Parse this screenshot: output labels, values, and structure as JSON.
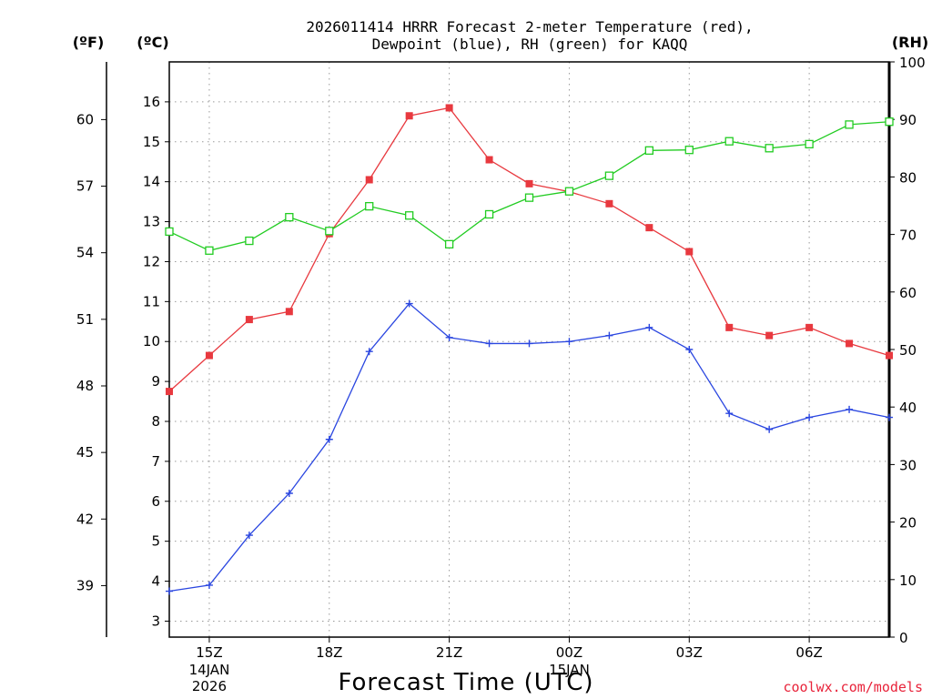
{
  "chart_data": {
    "type": "line",
    "title": "2026011414 HRRR Forecast 2-meter Temperature (red),",
    "subtitle": "Dewpoint (blue), RH (green) for KAQQ",
    "xlabel": "Forecast Time (UTC)",
    "units": {
      "fahrenheit": "(ºF)",
      "celsius": "(ºC)",
      "rh": "(RH)"
    },
    "credit": "coolwx.com/models",
    "x_hours": [
      14,
      15,
      16,
      17,
      18,
      19,
      20,
      21,
      22,
      23,
      24,
      25,
      26,
      27,
      28,
      29,
      30,
      31,
      32
    ],
    "x_range": [
      14,
      32
    ],
    "x_ticks": [
      {
        "hour": 15,
        "label": "15Z",
        "date": [
          "14JAN",
          "2026"
        ]
      },
      {
        "hour": 18,
        "label": "18Z",
        "date": []
      },
      {
        "hour": 21,
        "label": "21Z",
        "date": []
      },
      {
        "hour": 24,
        "label": "00Z",
        "date": [
          "15JAN"
        ]
      },
      {
        "hour": 27,
        "label": "03Z",
        "date": []
      },
      {
        "hour": 30,
        "label": "06Z",
        "date": []
      }
    ],
    "y_left_c": {
      "range": [
        2.6,
        17.0
      ],
      "ticks": [
        3,
        4,
        5,
        6,
        7,
        8,
        9,
        10,
        11,
        12,
        13,
        14,
        15,
        16
      ]
    },
    "y_left_f": {
      "ticks": [
        39,
        42,
        45,
        48,
        51,
        54,
        57,
        60
      ]
    },
    "y_right_rh": {
      "range": [
        0,
        100
      ],
      "ticks": [
        0,
        10,
        20,
        30,
        40,
        50,
        60,
        70,
        80,
        90,
        100
      ]
    },
    "series": [
      {
        "name": "2-meter Temperature",
        "axis": "celsius",
        "color": "#e8393f",
        "marker": "filled-square",
        "values": [
          8.75,
          9.65,
          10.55,
          10.75,
          12.7,
          14.05,
          15.65,
          15.85,
          14.55,
          13.95,
          13.75,
          13.45,
          12.85,
          12.25,
          10.35,
          10.15,
          10.35,
          9.95,
          9.65
        ]
      },
      {
        "name": "Dewpoint",
        "axis": "celsius",
        "color": "#2a46e0",
        "marker": "plus",
        "values": [
          3.75,
          3.9,
          5.15,
          6.2,
          7.55,
          9.75,
          10.95,
          10.1,
          9.95,
          9.95,
          10.0,
          10.15,
          10.35,
          9.8,
          8.2,
          7.8,
          8.1,
          8.3,
          8.1
        ]
      },
      {
        "name": "Relative Humidity",
        "axis": "rh",
        "color": "#22cc22",
        "marker": "open-square",
        "values": [
          70.5,
          67.2,
          68.9,
          73.0,
          70.6,
          74.9,
          73.3,
          68.3,
          73.5,
          76.4,
          77.5,
          80.2,
          84.6,
          84.7,
          86.2,
          85.0,
          85.7,
          89.1,
          89.6
        ]
      }
    ]
  }
}
